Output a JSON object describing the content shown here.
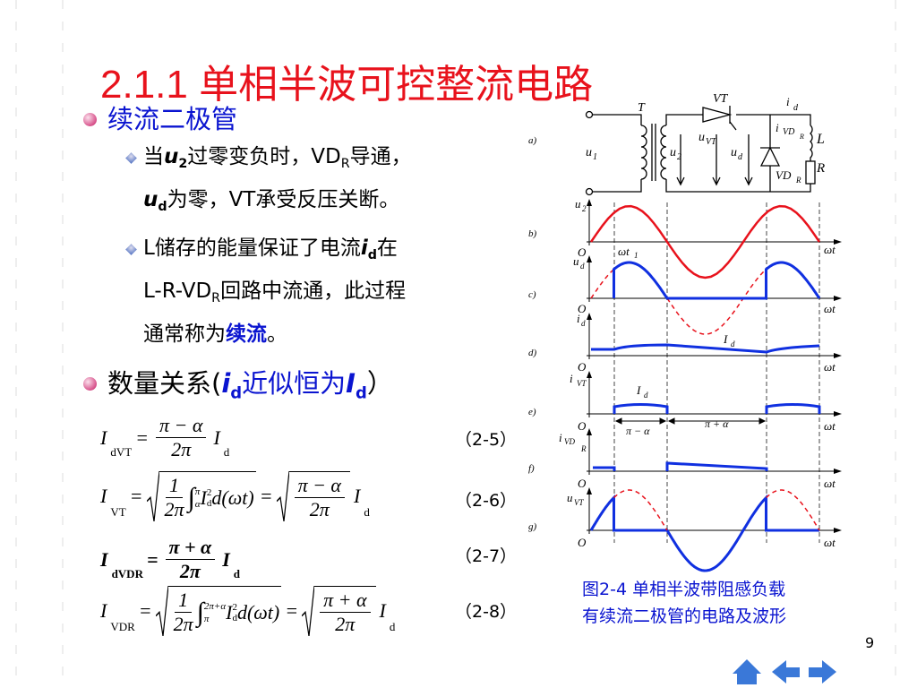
{
  "title": "2.1.1  单相半波可控整流电路",
  "sections": [
    {
      "heading": [
        {
          "text": "续流二极管",
          "style": "blue"
        }
      ],
      "items": [
        [
          [
            {
              "text": "当"
            },
            {
              "text": "u",
              "style": "bold italic"
            },
            {
              "text": "2",
              "style": "bold sub"
            },
            {
              "text": "过零变负时，VD"
            },
            {
              "text": "R",
              "style": "sub"
            },
            {
              "text": "导通，"
            }
          ],
          [
            {
              "text": "u",
              "style": "bold italic"
            },
            {
              "text": "d",
              "style": "bold sub"
            },
            {
              "text": "为零，VT承受反压关断。"
            }
          ]
        ],
        [
          [
            {
              "text": "L储存的能量保证了电流"
            },
            {
              "text": "i",
              "style": "bold italic"
            },
            {
              "text": "d",
              "style": "bold sub"
            },
            {
              "text": "在"
            }
          ],
          [
            {
              "text": "L-R-VD"
            },
            {
              "text": "R",
              "style": "sub"
            },
            {
              "text": "回路中流通，此过程"
            }
          ],
          [
            {
              "text": "通常称为"
            },
            {
              "text": "续流",
              "style": "blue bold"
            },
            {
              "text": "。"
            }
          ]
        ]
      ]
    },
    {
      "heading": [
        {
          "text": "数量关系("
        },
        {
          "text": "i",
          "style": "blue bold italic"
        },
        {
          "text": "d",
          "style": "blue bold sub"
        },
        {
          "text": "近似恒为",
          "style": "blue"
        },
        {
          "text": "I",
          "style": "blue bold italic"
        },
        {
          "text": "d",
          "style": "blue bold sub"
        },
        {
          "text": "）"
        }
      ],
      "items": []
    }
  ],
  "formulas": [
    {
      "number": "（2-5）",
      "bold": false,
      "nodes": [
        {
          "t": "I"
        },
        {
          "sub": "dVT"
        },
        {
          "t": "="
        },
        {
          "frac": [
            [
              {
                "t": "π − α"
              }
            ],
            [
              {
                "t": "2π"
              }
            ]
          ]
        },
        {
          "t": "I"
        },
        {
          "sub": "d"
        }
      ]
    },
    {
      "number": "（2-6）",
      "bold": false,
      "nodes": [
        {
          "t": "I"
        },
        {
          "sub": "VT"
        },
        {
          "t": "="
        },
        {
          "sqrt": [
            {
              "frac": [
                [
                  {
                    "t": "1"
                  }
                ],
                [
                  {
                    "t": "2π"
                  }
                ]
              ]
            },
            {
              "int": {
                "sign": "∫",
                "lower": "α",
                "upper": "π"
              }
            },
            {
              "t": "I"
            },
            {
              "supsub": [
                "2",
                "d"
              ]
            },
            {
              "t": "d(ωt)"
            }
          ]
        },
        {
          "t": "="
        },
        {
          "sqrt": [
            {
              "frac": [
                [
                  {
                    "t": "π − α"
                  }
                ],
                [
                  {
                    "t": "2π"
                  }
                ]
              ]
            }
          ]
        },
        {
          "t": "I"
        },
        {
          "sub": "d"
        }
      ]
    },
    {
      "number": "（2-7）",
      "bold": true,
      "nodes": [
        {
          "t": "I"
        },
        {
          "sub": "dVDR"
        },
        {
          "t": "="
        },
        {
          "frac": [
            [
              {
                "t": "π + α"
              }
            ],
            [
              {
                "t": "2π"
              }
            ]
          ]
        },
        {
          "t": "I"
        },
        {
          "sub": "d"
        }
      ]
    },
    {
      "number": "（2-8）",
      "bold": false,
      "nodes": [
        {
          "t": "I"
        },
        {
          "sub": "VDR"
        },
        {
          "t": "="
        },
        {
          "sqrt": [
            {
              "frac": [
                [
                  {
                    "t": "1"
                  }
                ],
                [
                  {
                    "t": "2π"
                  }
                ]
              ]
            },
            {
              "int": {
                "sign": "∫",
                "lower": "π",
                "upper": "2π+α"
              }
            },
            {
              "t": "I"
            },
            {
              "supsub": [
                "2",
                "d"
              ]
            },
            {
              "t": "d(ωt)"
            }
          ]
        },
        {
          "t": "="
        },
        {
          "sqrt": [
            {
              "frac": [
                [
                  {
                    "t": "π + α"
                  }
                ],
                [
                  {
                    "t": "2π"
                  }
                ]
              ]
            }
          ]
        },
        {
          "t": "I"
        },
        {
          "sub": "d"
        }
      ]
    }
  ],
  "figure": {
    "labels": [
      "a)",
      "T",
      "VT",
      "i",
      "d",
      "i",
      "VD",
      "R",
      "L",
      "u",
      "1",
      "u",
      "2",
      "u",
      "VT",
      "u",
      "d",
      "VD",
      "R",
      "R",
      "b)",
      "u",
      "2",
      "O",
      "ωt",
      "ωt",
      "1",
      "c)",
      "u",
      "d",
      "O",
      "ωt",
      "d)",
      "i",
      "d",
      "I",
      "d",
      "O",
      "ωt",
      "e)",
      "i",
      "VT",
      "I",
      "d",
      "O",
      "ωt",
      "π − α",
      "π + α",
      "f)",
      "i",
      "VD",
      "R",
      "O",
      "ωt",
      "g)",
      "u",
      "VT",
      "O",
      "ωt"
    ],
    "caption": [
      "图2-4  单相半波带阻感负载",
      "有续流二极管的电路及波形"
    ]
  },
  "page_number": "9"
}
